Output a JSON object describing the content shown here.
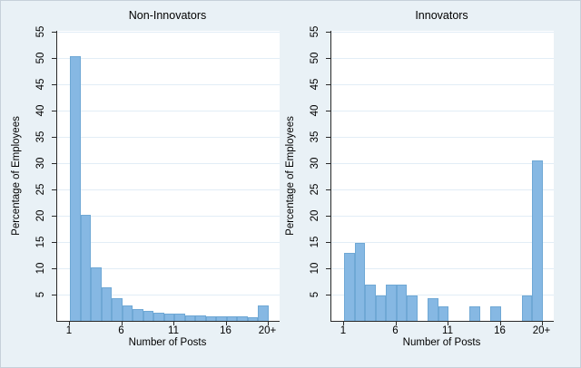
{
  "figure": {
    "background_color": "#e9f1f6",
    "plot_background": "#ffffff",
    "bar_fill": "#86b8e3",
    "bar_border": "#6fa8d5",
    "gridline_color": "#e2edf6",
    "axis_color": "#2a2a2a"
  },
  "chart_data": [
    {
      "type": "bar",
      "title": "Non-Innovators",
      "xlabel": "Number of Posts",
      "ylabel": "Percentage of Employees",
      "categories": [
        "1",
        "2",
        "3",
        "4",
        "5",
        "6",
        "7",
        "8",
        "9",
        "10",
        "11",
        "12",
        "13",
        "14",
        "15",
        "16",
        "17",
        "18",
        "20+"
      ],
      "values": [
        50.4,
        20.2,
        10.2,
        6.3,
        4.4,
        3.0,
        2.3,
        1.9,
        1.6,
        1.4,
        1.3,
        1.1,
        1.0,
        0.9,
        0.9,
        0.8,
        0.8,
        0.7,
        3.0
      ],
      "x_tick_labels": [
        "1",
        "6",
        "11",
        "16",
        "20+"
      ],
      "x_tick_slots": [
        1,
        6,
        11,
        16,
        20
      ],
      "y_ticks": [
        5,
        10,
        15,
        20,
        25,
        30,
        35,
        40,
        45,
        50,
        55
      ],
      "ylim": [
        0,
        55.2
      ],
      "grid": true,
      "legend": "none"
    },
    {
      "type": "bar",
      "title": "Innovators",
      "xlabel": "Number of Posts",
      "ylabel": "Percentage of Employees",
      "categories": [
        "1",
        "2",
        "3",
        "4",
        "5",
        "6",
        "7",
        "8",
        "9",
        "10",
        "11",
        "12",
        "13",
        "14",
        "15",
        "16",
        "17",
        "18",
        "20+"
      ],
      "values": [
        12.9,
        14.8,
        6.9,
        4.8,
        6.9,
        6.9,
        4.8,
        0,
        4.4,
        2.8,
        0,
        0,
        2.8,
        0,
        2.8,
        0,
        0,
        4.8,
        30.6
      ],
      "x_tick_labels": [
        "1",
        "6",
        "11",
        "16",
        "20+"
      ],
      "x_tick_slots": [
        1,
        6,
        11,
        16,
        20
      ],
      "y_ticks": [
        5,
        10,
        15,
        20,
        25,
        30,
        35,
        40,
        45,
        50,
        55
      ],
      "ylim": [
        0,
        55.2
      ],
      "grid": true,
      "legend": "none"
    }
  ]
}
